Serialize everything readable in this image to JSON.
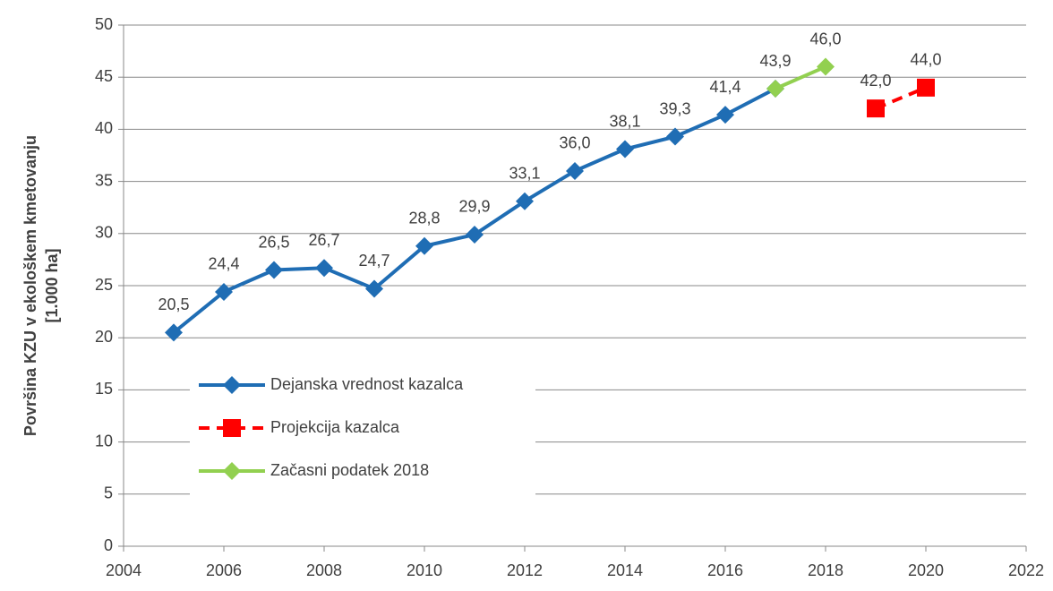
{
  "chart_data": {
    "type": "line",
    "ylabel": [
      "Površina KZU v ekološkem kmetovanju",
      "[1.000 ha]"
    ],
    "xlim": [
      2004,
      2022
    ],
    "xticks": [
      2004,
      2006,
      2008,
      2010,
      2012,
      2014,
      2016,
      2018,
      2020,
      2022
    ],
    "ylim": [
      0,
      50
    ],
    "yticks": [
      0,
      5,
      10,
      15,
      20,
      25,
      30,
      35,
      40,
      45,
      50
    ],
    "grid": true,
    "legend": "lower left",
    "series": [
      {
        "name": "Dejanska vrednost kazalca",
        "color": "#1f6db4",
        "marker": "diamond",
        "dashed": false,
        "x": [
          2005,
          2006,
          2007,
          2008,
          2009,
          2010,
          2011,
          2012,
          2013,
          2014,
          2015,
          2016,
          2017
        ],
        "values": [
          20.5,
          24.4,
          26.5,
          26.7,
          24.7,
          28.8,
          29.9,
          33.1,
          36.0,
          38.1,
          39.3,
          41.4,
          43.9
        ],
        "value_labels": [
          "20,5",
          "24,4",
          "26,5",
          "26,7",
          "24,7",
          "28,8",
          "29,9",
          "33,1",
          "36,0",
          "38,1",
          "39,3",
          "41,4",
          "43,9"
        ]
      },
      {
        "name": "Projekcija kazalca",
        "color": "#ff0000",
        "marker": "square",
        "dashed": true,
        "x": [
          2019,
          2020
        ],
        "values": [
          42.0,
          44.0
        ],
        "value_labels": [
          "42,0",
          "44,0"
        ]
      },
      {
        "name": "Začasni podatek 2018",
        "color": "#92d050",
        "marker": "diamond",
        "dashed": false,
        "x": [
          2017,
          2018
        ],
        "values": [
          43.9,
          46.0
        ],
        "value_labels": [
          null,
          "46,0"
        ]
      }
    ]
  }
}
